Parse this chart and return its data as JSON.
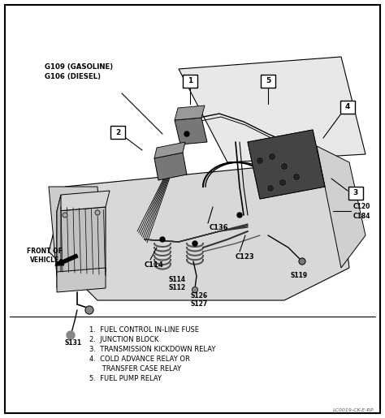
{
  "bg_color": "#ffffff",
  "fig_width": 4.74,
  "fig_height": 5.15,
  "dpi": 100,
  "legend_items": [
    "1.  FUEL CONTROL IN-LINE FUSE",
    "2.  JUNCTION BLOCK",
    "3.  TRANSMISSION KICKDOWN RELAY",
    "4.  COLD ADVANCE RELAY OR",
    "      TRANSFER CASE RELAY",
    "5.  FUEL PUMP RELAY"
  ],
  "watermark": "LC0019-CK-E-RP",
  "g_label_1": "G109 (GASOLINE)",
  "g_label_2": "G106 (DIESEL)",
  "front_label": "FRONT OF\nVEHICLE",
  "label_C136": "C136",
  "label_C123": "C123",
  "label_C114": "C114",
  "label_C120": "C120",
  "label_C184": "C184",
  "label_S114": "S114",
  "label_S112": "S112",
  "label_S126": "S126",
  "label_S127": "S127",
  "label_S119": "S119",
  "label_S131": "S131"
}
